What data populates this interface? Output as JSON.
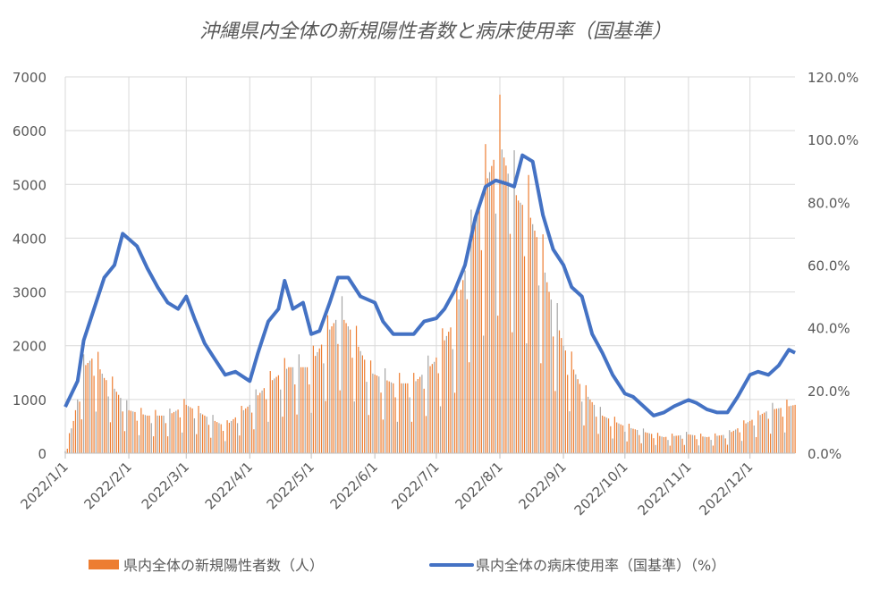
{
  "chart_data": {
    "type": "bar+line",
    "title": "沖縄県内全体の新規陽性者数と病床使用率（国基準）",
    "x_unit": "day of year 2022 (0 = 2022/1/1), approximate readings",
    "x_tick_labels": [
      "2022/1/1",
      "2022/2/1",
      "2022/3/1",
      "2022/4/1",
      "2022/5/1",
      "2022/6/1",
      "2022/7/1",
      "2022/8/1",
      "2022/9/1",
      "2022/10/1",
      "2022/11/1",
      "2022/12/1"
    ],
    "x_tick_days": [
      0,
      31,
      59,
      90,
      120,
      151,
      181,
      212,
      243,
      273,
      304,
      334
    ],
    "xlim": [
      0,
      356
    ],
    "y_left": {
      "ylim": [
        0,
        7000
      ],
      "ticks": [
        "0",
        "1000",
        "2000",
        "3000",
        "4000",
        "5000",
        "6000",
        "7000"
      ]
    },
    "y_right": {
      "ylim": [
        0,
        120
      ],
      "ticks": [
        "0.0%",
        "20.0%",
        "40.0%",
        "60.0%",
        "80.0%",
        "100.0%",
        "120.0%"
      ]
    },
    "grid": true,
    "legend_position": "bottom",
    "series": [
      {
        "name": "県内全体の新規陽性者数（人）",
        "type": "bar",
        "axis": "left",
        "color": "#ED7D31",
        "points": [
          [
            0,
            50
          ],
          [
            4,
            600
          ],
          [
            9,
            1600
          ],
          [
            14,
            1800
          ],
          [
            19,
            1400
          ],
          [
            24,
            1200
          ],
          [
            31,
            800
          ],
          [
            40,
            700
          ],
          [
            50,
            700
          ],
          [
            59,
            900
          ],
          [
            68,
            700
          ],
          [
            78,
            500
          ],
          [
            90,
            900
          ],
          [
            99,
            1300
          ],
          [
            109,
            1600
          ],
          [
            119,
            1600
          ],
          [
            129,
            2300
          ],
          [
            134,
            2600
          ],
          [
            139,
            2300
          ],
          [
            149,
            1500
          ],
          [
            160,
            1300
          ],
          [
            170,
            1300
          ],
          [
            180,
            1700
          ],
          [
            190,
            2500
          ],
          [
            200,
            4300
          ],
          [
            205,
            5000
          ],
          [
            212,
            5800
          ],
          [
            216,
            5200
          ],
          [
            221,
            4700
          ],
          [
            226,
            4500
          ],
          [
            231,
            3900
          ],
          [
            236,
            3000
          ],
          [
            243,
            2000
          ],
          [
            252,
            1200
          ],
          [
            262,
            700
          ],
          [
            273,
            500
          ],
          [
            282,
            400
          ],
          [
            292,
            300
          ],
          [
            304,
            350
          ],
          [
            313,
            300
          ],
          [
            323,
            350
          ],
          [
            334,
            600
          ],
          [
            343,
            800
          ],
          [
            350,
            850
          ],
          [
            356,
            900
          ]
        ]
      },
      {
        "name": "県内全体の病床使用率（国基準）（%）",
        "type": "line",
        "axis": "right",
        "color": "#4472C4",
        "points": [
          [
            0,
            14.8
          ],
          [
            6,
            23
          ],
          [
            9,
            36
          ],
          [
            14,
            46
          ],
          [
            19,
            56
          ],
          [
            24,
            60
          ],
          [
            28,
            70
          ],
          [
            35,
            66
          ],
          [
            40,
            59
          ],
          [
            45,
            53
          ],
          [
            50,
            48
          ],
          [
            55,
            46
          ],
          [
            59,
            50
          ],
          [
            63,
            43
          ],
          [
            68,
            35
          ],
          [
            73,
            30
          ],
          [
            78,
            25
          ],
          [
            83,
            26
          ],
          [
            90,
            23
          ],
          [
            94,
            32
          ],
          [
            99,
            42
          ],
          [
            104,
            46
          ],
          [
            107,
            55
          ],
          [
            111,
            46
          ],
          [
            116,
            48
          ],
          [
            120,
            38
          ],
          [
            124,
            39
          ],
          [
            129,
            48
          ],
          [
            133,
            56
          ],
          [
            138,
            56
          ],
          [
            144,
            50
          ],
          [
            151,
            48
          ],
          [
            155,
            42
          ],
          [
            160,
            38
          ],
          [
            165,
            38
          ],
          [
            170,
            38
          ],
          [
            175,
            42
          ],
          [
            181,
            43
          ],
          [
            185,
            46
          ],
          [
            190,
            52
          ],
          [
            195,
            60
          ],
          [
            200,
            75
          ],
          [
            205,
            85
          ],
          [
            210,
            87
          ],
          [
            215,
            86
          ],
          [
            219,
            85
          ],
          [
            223,
            95
          ],
          [
            228,
            93
          ],
          [
            233,
            76
          ],
          [
            238,
            65
          ],
          [
            243,
            60
          ],
          [
            247,
            53
          ],
          [
            252,
            50
          ],
          [
            257,
            38
          ],
          [
            262,
            32
          ],
          [
            267,
            25
          ],
          [
            273,
            19
          ],
          [
            277,
            18
          ],
          [
            282,
            15
          ],
          [
            287,
            12
          ],
          [
            292,
            13
          ],
          [
            297,
            15
          ],
          [
            304,
            17
          ],
          [
            308,
            16
          ],
          [
            313,
            14
          ],
          [
            318,
            13
          ],
          [
            323,
            13
          ],
          [
            328,
            18
          ],
          [
            334,
            25
          ],
          [
            338,
            26
          ],
          [
            343,
            25
          ],
          [
            348,
            28
          ],
          [
            353,
            33
          ],
          [
            356,
            32
          ]
        ]
      }
    ]
  }
}
